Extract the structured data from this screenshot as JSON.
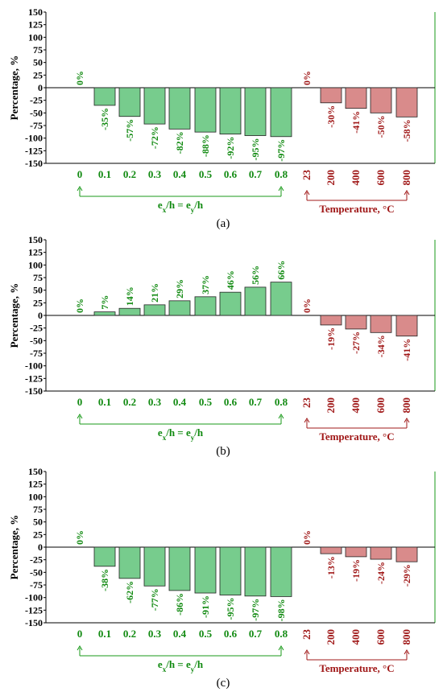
{
  "chart_data": [
    {
      "type": "bar",
      "caption": "(a)",
      "ylabel": "Percentage, %",
      "ylim": [
        -150,
        150
      ],
      "yticks": [
        150,
        125,
        100,
        75,
        50,
        25,
        0,
        -25,
        -50,
        -75,
        -100,
        -125,
        -150
      ],
      "groups": [
        {
          "label": "e_x/h = e_y/h",
          "color": "#77cc8d",
          "text_color": "#118a11",
          "categories": [
            "0",
            "0.1",
            "0.2",
            "0.3",
            "0.4",
            "0.5",
            "0.6",
            "0.7",
            "0.8"
          ],
          "values": [
            0,
            -35,
            -57,
            -72,
            -82,
            -88,
            -92,
            -95,
            -97
          ],
          "labels": [
            "0%",
            "-35%",
            "-57%",
            "-72%",
            "-82%",
            "-88%",
            "-92%",
            "-95%",
            "-97%"
          ]
        },
        {
          "label": "Temperature, °C",
          "color": "#d98b8b",
          "text_color": "#a01818",
          "categories": [
            "23",
            "200",
            "400",
            "600",
            "800"
          ],
          "values": [
            0,
            -30,
            -41,
            -50,
            -58
          ],
          "labels": [
            "0%",
            "-30%",
            "-41%",
            "-50%",
            "-58%"
          ]
        }
      ]
    },
    {
      "type": "bar",
      "caption": "(b)",
      "ylabel": "Percentage, %",
      "ylim": [
        -150,
        150
      ],
      "yticks": [
        150,
        125,
        100,
        75,
        50,
        25,
        0,
        -25,
        -50,
        -75,
        -100,
        -125,
        -150
      ],
      "groups": [
        {
          "label": "e_x/h = e_y/h",
          "color": "#77cc8d",
          "text_color": "#118a11",
          "categories": [
            "0",
            "0.1",
            "0.2",
            "0.3",
            "0.4",
            "0.5",
            "0.6",
            "0.7",
            "0.8"
          ],
          "values": [
            0,
            7,
            14,
            21,
            29,
            37,
            46,
            56,
            66
          ],
          "labels": [
            "0%",
            "7%",
            "14%",
            "21%",
            "29%",
            "37%",
            "46%",
            "56%",
            "66%"
          ]
        },
        {
          "label": "Temperature, °C",
          "color": "#d98b8b",
          "text_color": "#a01818",
          "categories": [
            "23",
            "200",
            "400",
            "600",
            "800"
          ],
          "values": [
            0,
            -19,
            -27,
            -34,
            -41
          ],
          "labels": [
            "0%",
            "-19%",
            "-27%",
            "-34%",
            "-41%"
          ]
        }
      ]
    },
    {
      "type": "bar",
      "caption": "(c)",
      "ylabel": "Percentage, %",
      "ylim": [
        -150,
        150
      ],
      "yticks": [
        150,
        125,
        100,
        75,
        50,
        25,
        0,
        -25,
        -50,
        -75,
        -100,
        -125,
        -150
      ],
      "groups": [
        {
          "label": "e_x/h = e_y/h",
          "color": "#77cc8d",
          "text_color": "#118a11",
          "categories": [
            "0",
            "0.1",
            "0.2",
            "0.3",
            "0.4",
            "0.5",
            "0.6",
            "0.7",
            "0.8"
          ],
          "values": [
            0,
            -38,
            -62,
            -77,
            -86,
            -91,
            -95,
            -97,
            -98
          ],
          "labels": [
            "0%",
            "-38%",
            "-62%",
            "-77%",
            "-86%",
            "-91%",
            "-95%",
            "-97%",
            "-98%"
          ]
        },
        {
          "label": "Temperature, °C",
          "color": "#d98b8b",
          "text_color": "#a01818",
          "categories": [
            "23",
            "200",
            "400",
            "600",
            "800"
          ],
          "values": [
            0,
            -13,
            -19,
            -24,
            -29
          ],
          "labels": [
            "0%",
            "-13%",
            "-19%",
            "-24%",
            "-29%"
          ]
        }
      ]
    }
  ]
}
